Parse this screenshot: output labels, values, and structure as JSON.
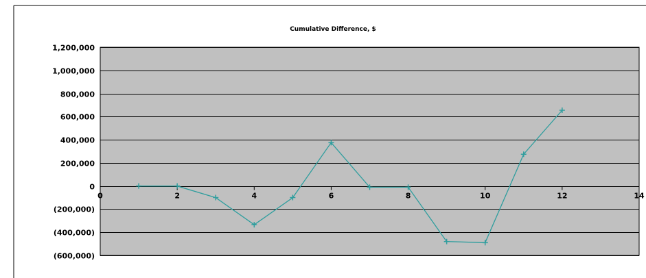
{
  "chart_data": {
    "type": "scatter",
    "title": "Cumulative Difference, $",
    "xlabel": "",
    "ylabel": "",
    "xlim": [
      0,
      14
    ],
    "ylim": [
      -600000,
      1200000
    ],
    "x_ticks": [
      0,
      2,
      4,
      6,
      8,
      10,
      12,
      14
    ],
    "x_tick_labels": [
      "0",
      "2",
      "4",
      "6",
      "8",
      "10",
      "12",
      "14"
    ],
    "y_ticks": [
      1200000,
      1000000,
      800000,
      600000,
      400000,
      200000,
      0,
      -200000,
      -400000,
      -600000
    ],
    "y_tick_labels": [
      "1,200,000",
      "1,000,000",
      "800,000",
      "600,000",
      "400,000",
      "200,000",
      "0",
      "(200,000)",
      "(400,000)",
      "(600,000)"
    ],
    "grid": true,
    "legend": "none",
    "series": [
      {
        "x": [
          1,
          2,
          3,
          4,
          5,
          6,
          7,
          8,
          9,
          10,
          11,
          12
        ],
        "y": [
          0,
          0,
          -100000,
          -335000,
          -100000,
          375000,
          -10000,
          -10000,
          -480000,
          -490000,
          275000,
          655000
        ],
        "color": "#2f9e9e",
        "marker": "plus",
        "line": true
      }
    ],
    "colors": {
      "plot_background": "#c0c0c0",
      "gridline": "#000000",
      "frame": "#000000"
    }
  }
}
